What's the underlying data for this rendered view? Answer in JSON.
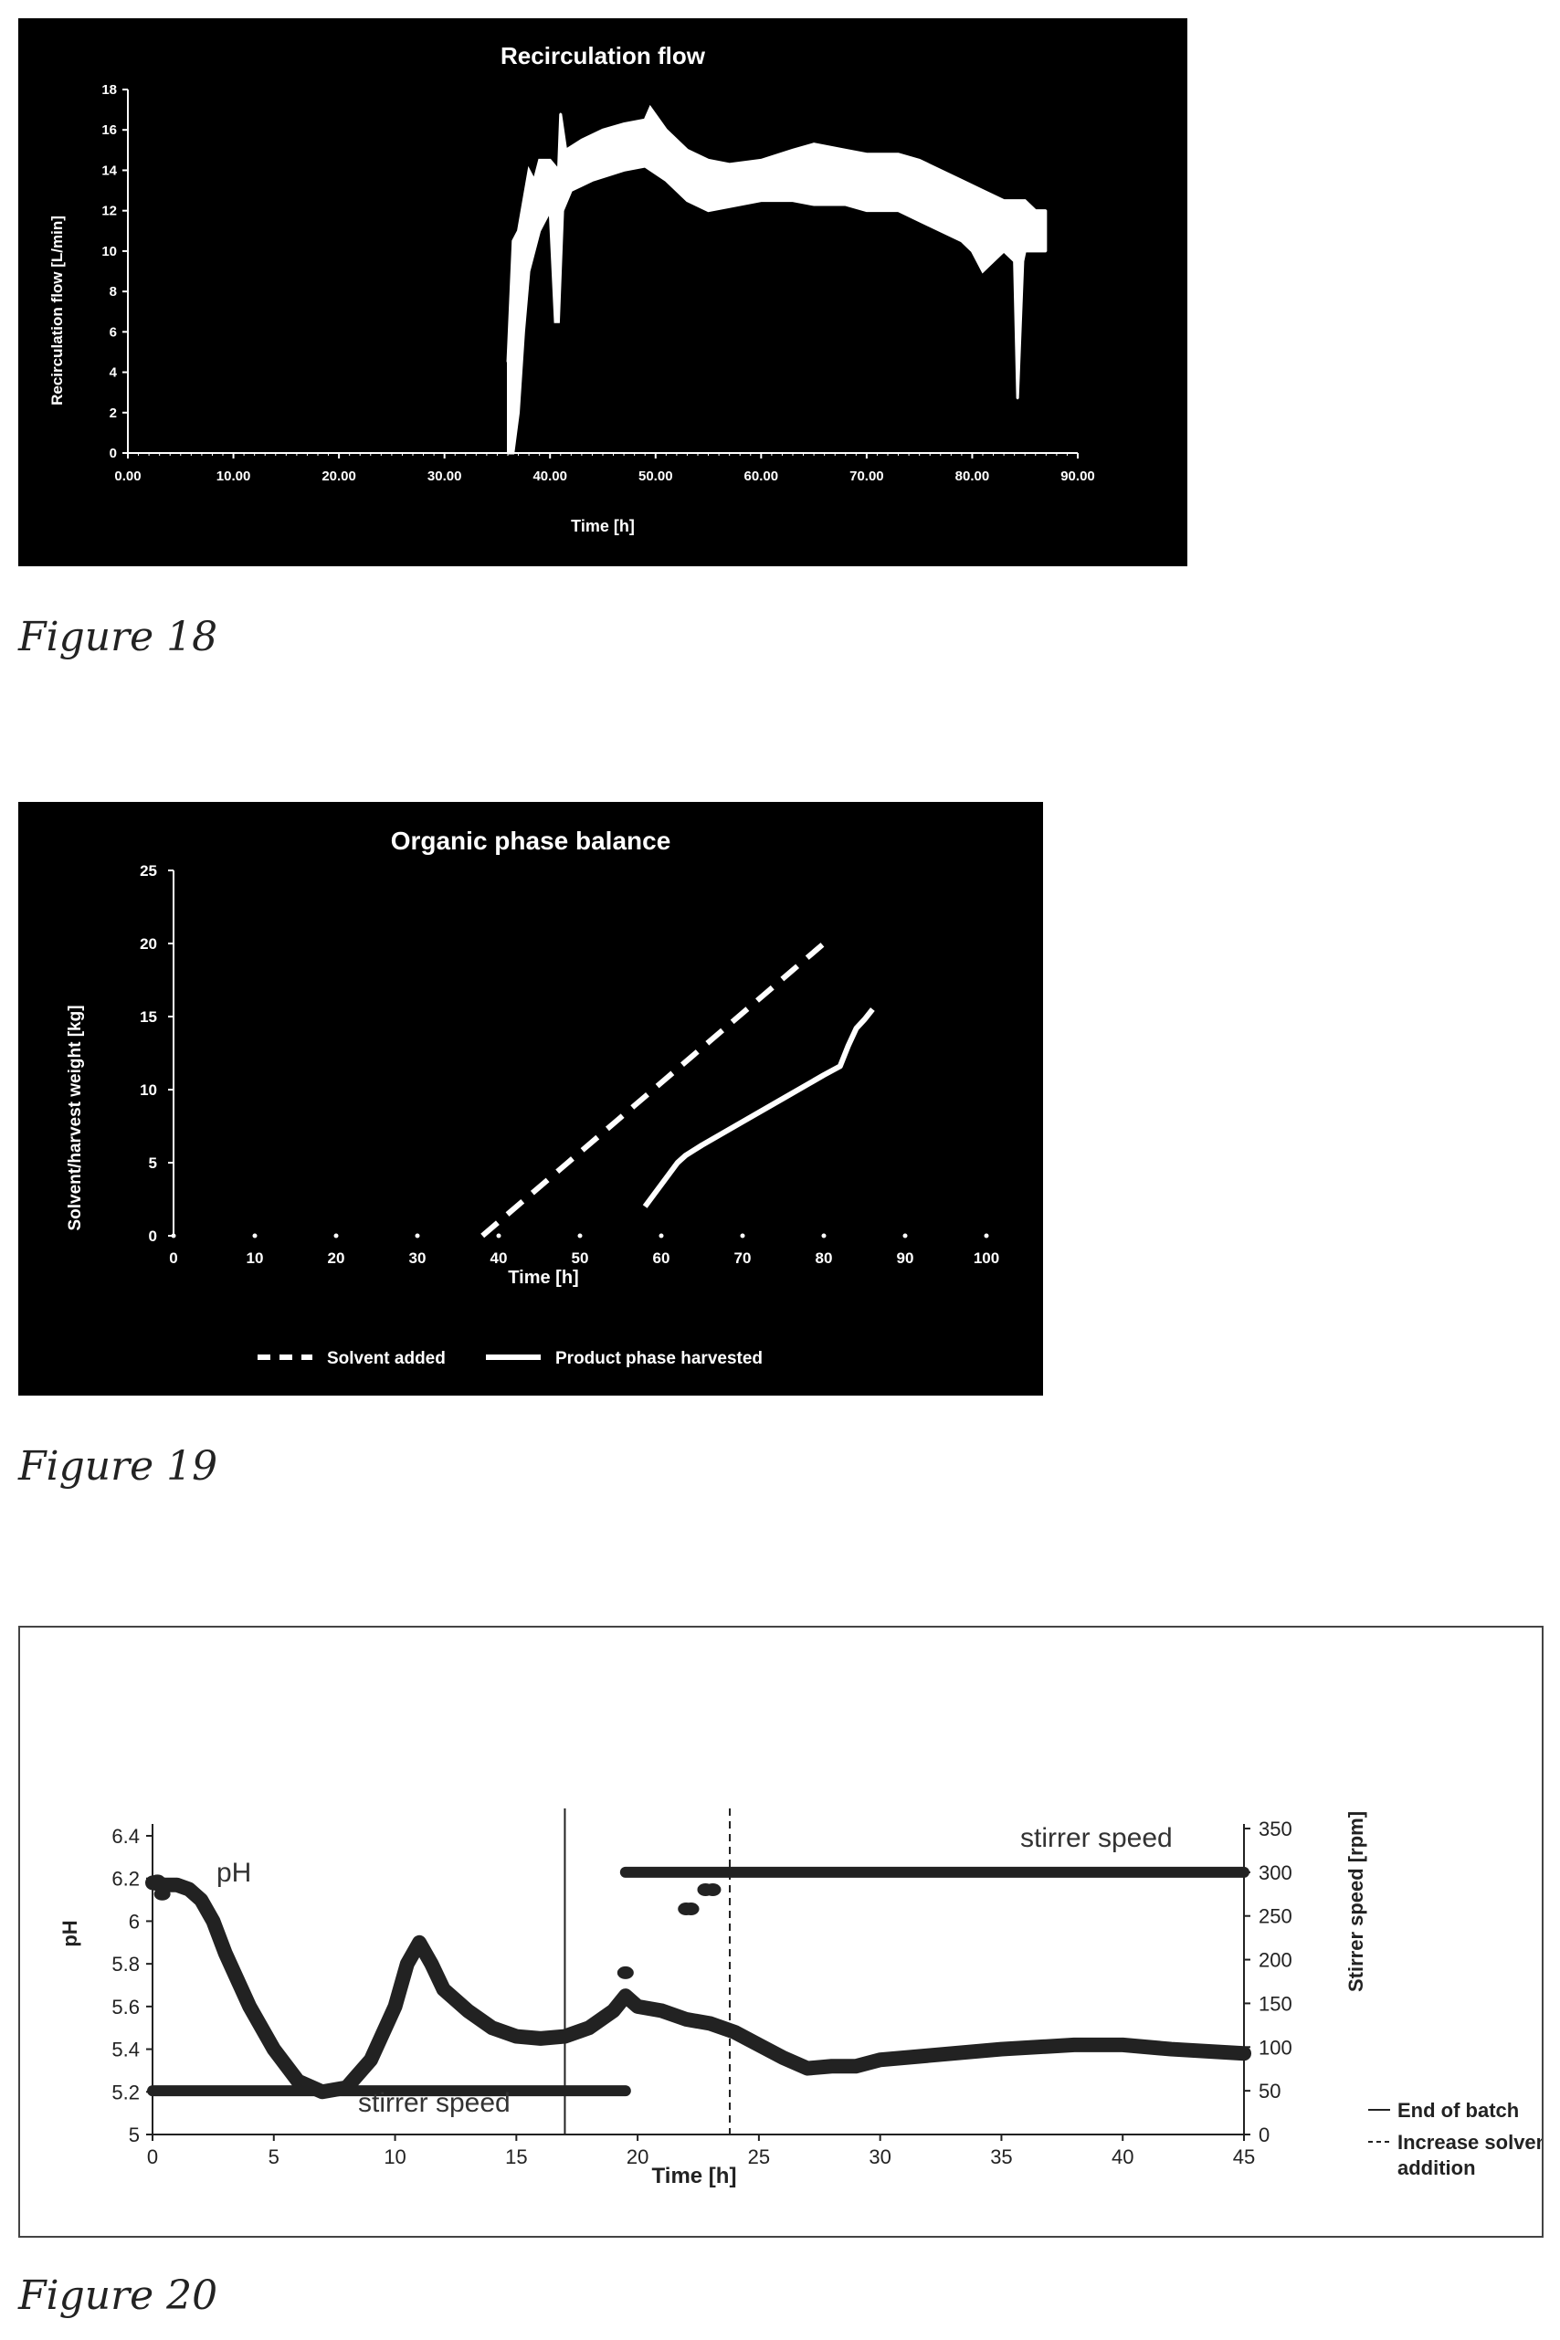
{
  "figures": [
    {
      "caption": "Figure 18",
      "chart_data": {
        "type": "line",
        "title": "Recirculation flow",
        "xlabel": "Time [h]",
        "ylabel": "Recirculation flow [L/min]",
        "xlim": [
          0,
          90
        ],
        "ylim": [
          0,
          18
        ],
        "x_ticks": [
          "0.00",
          "10.00",
          "20.00",
          "30.00",
          "40.00",
          "50.00",
          "60.00",
          "70.00",
          "80.00",
          "90.00"
        ],
        "y_ticks": [
          "0",
          "2",
          "4",
          "6",
          "8",
          "10",
          "12",
          "14",
          "16",
          "18"
        ],
        "series": [
          {
            "upper": {
              "x": [
                36,
                36.5,
                37,
                37.5,
                38,
                38.5,
                39,
                40,
                40.8,
                41,
                41.5,
                43,
                45,
                47,
                49,
                49.5,
                51,
                53,
                55,
                57,
                60,
                63,
                65,
                68,
                70,
                73,
                75,
                77,
                79,
                81,
                83,
                84,
                85,
                86,
                87
              ],
              "y": [
                4.5,
                10.5,
                11,
                12.5,
                14,
                13.5,
                14.5,
                14.5,
                14,
                16.8,
                15,
                15.5,
                16,
                16.3,
                16.5,
                17.1,
                16,
                15,
                14.5,
                14.3,
                14.5,
                15,
                15.3,
                15,
                14.8,
                14.8,
                14.5,
                14,
                13.5,
                13,
                12.5,
                12.5,
                12.5,
                12,
                12
              ]
            },
            "lower": {
              "x": [
                36,
                36.5,
                37,
                37.5,
                38,
                39,
                40,
                40.5,
                40.8,
                41.2,
                42,
                44,
                47,
                49,
                51,
                53,
                55,
                57,
                60,
                63,
                65,
                68,
                70,
                73,
                75,
                77,
                79,
                80,
                81,
                82,
                83,
                84,
                84.3,
                84.8,
                85,
                86,
                87
              ],
              "y": [
                0,
                0,
                2,
                6,
                9,
                11,
                12,
                6.5,
                6.5,
                12,
                13,
                13.5,
                14,
                14.2,
                13.5,
                12.5,
                12,
                12.2,
                12.5,
                12.5,
                12.3,
                12.3,
                12,
                12,
                11.5,
                11,
                10.5,
                10,
                9,
                9.5,
                10,
                9.5,
                2.7,
                9.5,
                10,
                10,
                10
              ]
            }
          }
        ],
        "color": "#ffffff"
      }
    },
    {
      "caption": "Figure 19",
      "chart_data": {
        "type": "line",
        "title": "Organic phase balance",
        "xlabel": "Time [h]",
        "ylabel": "Solvent/harvest weight [kg]",
        "xlim": [
          0,
          100
        ],
        "ylim": [
          0,
          25
        ],
        "x_ticks": [
          "0",
          "10",
          "20",
          "30",
          "40",
          "50",
          "60",
          "70",
          "80",
          "90",
          "100"
        ],
        "y_ticks": [
          "0",
          "5",
          "10",
          "15",
          "20",
          "25"
        ],
        "series": [
          {
            "name": "Solvent added",
            "style": "dashed",
            "x": [
              38,
              80
            ],
            "y": [
              0,
              20
            ]
          },
          {
            "name": "Product phase harvested",
            "style": "solid",
            "x": [
              58,
              60,
              62,
              63,
              65,
              70,
              75,
              80,
              82,
              83,
              84,
              85,
              86
            ],
            "y": [
              2,
              3.5,
              5,
              5.5,
              6.2,
              7.8,
              9.4,
              11,
              11.6,
              13,
              14.2,
              14.8,
              15.5
            ]
          }
        ],
        "legend_position": "bottom"
      }
    },
    {
      "caption": "Figure 20",
      "chart_data": {
        "type": "scatter",
        "xlabel": "Time [h]",
        "ylabel": "pH",
        "ylabel_right": "Stirrer speed [rpm]",
        "xlim": [
          0,
          45
        ],
        "ylim": [
          5,
          6.4
        ],
        "ylim_right": [
          0,
          350
        ],
        "x_ticks": [
          "0",
          "5",
          "10",
          "15",
          "20",
          "25",
          "30",
          "35",
          "40",
          "45"
        ],
        "y_ticks": [
          "5",
          "5.2",
          "5.4",
          "5.6",
          "5.8",
          "6",
          "6.2",
          "6.4"
        ],
        "y_ticks_right": [
          "0",
          "50",
          "100",
          "150",
          "200",
          "250",
          "300",
          "350"
        ],
        "annotations": {
          "ph_label": "pH",
          "stirrer_label_low": "stirrer speed",
          "stirrer_label_high": "stirrer speed"
        },
        "series": [
          {
            "name": "pH",
            "axis": "left",
            "x": [
              0,
              0.5,
              1,
              1.5,
              2,
              2.5,
              3,
              4,
              5,
              6,
              7,
              8,
              9,
              10,
              10.5,
              11,
              11.5,
              12,
              13,
              14,
              15,
              16,
              17,
              18,
              19,
              19.5,
              20,
              21,
              22,
              23,
              24,
              25,
              26,
              27,
              28,
              29,
              30,
              32,
              35,
              38,
              40,
              42,
              45
            ],
            "y": [
              6.18,
              6.17,
              6.17,
              6.15,
              6.1,
              6.0,
              5.85,
              5.6,
              5.4,
              5.25,
              5.2,
              5.22,
              5.35,
              5.6,
              5.8,
              5.9,
              5.8,
              5.68,
              5.58,
              5.5,
              5.46,
              5.45,
              5.46,
              5.5,
              5.58,
              5.65,
              5.6,
              5.58,
              5.54,
              5.52,
              5.48,
              5.42,
              5.36,
              5.31,
              5.32,
              5.32,
              5.35,
              5.37,
              5.4,
              5.42,
              5.42,
              5.4,
              5.38
            ]
          },
          {
            "name": "stirrer speed",
            "axis": "right",
            "segments": [
              {
                "x": [
                  0,
                  19.5
                ],
                "y": [
                  50,
                  50
                ]
              },
              {
                "x": [
                  19.5,
                  45
                ],
                "y": [
                  300,
                  300
                ]
              }
            ],
            "points": {
              "x": [
                22,
                22.2,
                22.8,
                23.1,
                19.5,
                0.2,
                0.4
              ],
              "y": [
                258,
                258,
                280,
                280,
                185,
                290,
                275
              ]
            }
          },
          {
            "name": "End of batch",
            "style": "solid",
            "x": [
              17,
              17
            ]
          },
          {
            "name": "Increase solvent addition",
            "style": "dashed",
            "x": [
              23.8,
              23.8
            ]
          }
        ],
        "legend_position": "bottom-right"
      }
    }
  ]
}
